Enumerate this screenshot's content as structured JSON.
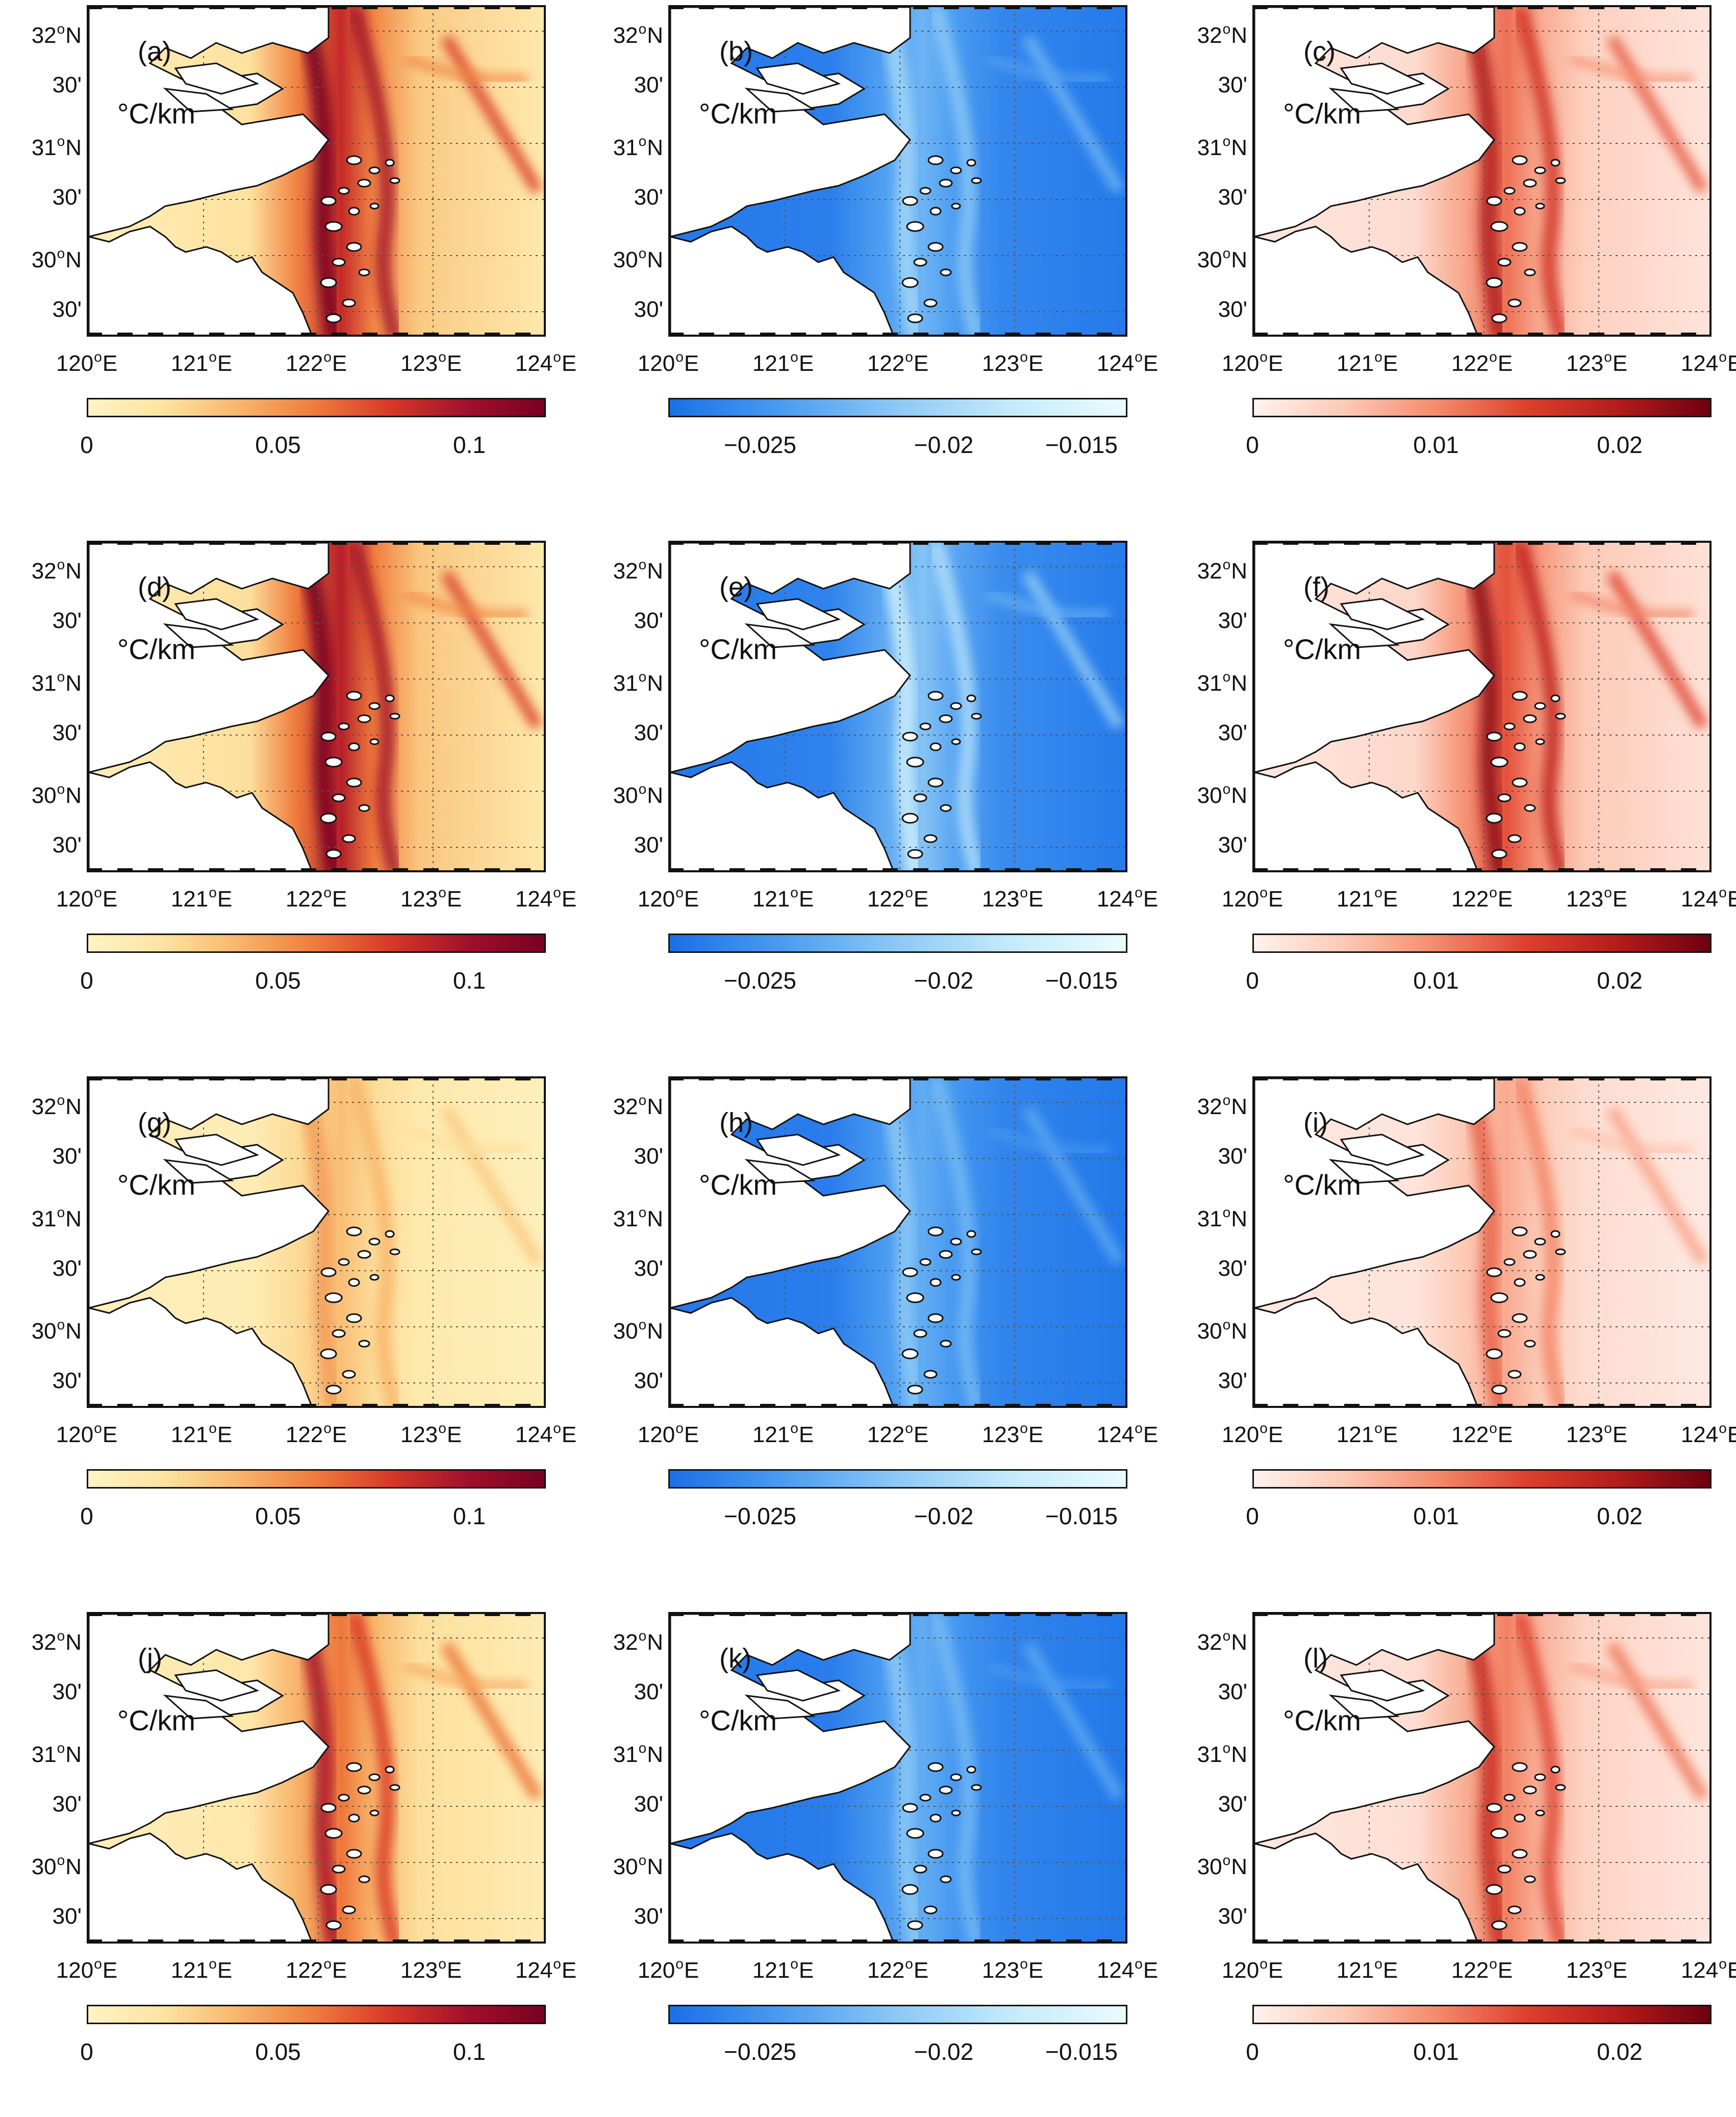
{
  "figure": {
    "unit_label": "°C/km",
    "lat_ticks": [
      {
        "deg": "32",
        "suffix": "N",
        "minute": false
      },
      {
        "deg": "30'",
        "suffix": "",
        "minute": true
      },
      {
        "deg": "31",
        "suffix": "N",
        "minute": false
      },
      {
        "deg": "30'",
        "suffix": "",
        "minute": true
      },
      {
        "deg": "30",
        "suffix": "N",
        "minute": false
      },
      {
        "deg": "30'",
        "suffix": "",
        "minute": true
      }
    ],
    "lon_ticks": [
      "120",
      "121",
      "122",
      "123",
      "124"
    ],
    "lon_suffix": "E",
    "lat_suffix": "N"
  },
  "colormaps": {
    "ylorrd": {
      "stops": [
        "#fff3c4",
        "#fde3a0",
        "#f8b46a",
        "#ef7a3c",
        "#d73727",
        "#a10f2b",
        "#7a0022"
      ],
      "ticks": [
        "0",
        "0.05",
        "0.1"
      ],
      "range": [
        0,
        0.12
      ],
      "tick_values": [
        0,
        0.05,
        0.1
      ]
    },
    "blues": {
      "stops": [
        "#1a6fe8",
        "#4b9cf1",
        "#8cc9f6",
        "#c4ebfb",
        "#eafbff"
      ],
      "ticks": [
        "−0.025",
        "−0.02",
        "−0.015"
      ],
      "range": [
        -0.0275,
        -0.015
      ],
      "tick_values": [
        -0.025,
        -0.02,
        -0.015
      ]
    },
    "reds": {
      "stops": [
        "#fff2ee",
        "#fcc9b5",
        "#f58a6b",
        "#dd3f2c",
        "#b41b1a",
        "#6e0010"
      ],
      "ticks": [
        "0",
        "0.01",
        "0.02"
      ],
      "range": [
        0,
        0.025
      ],
      "tick_values": [
        0,
        0.01,
        0.02
      ]
    }
  },
  "panels": [
    {
      "id": "a",
      "label": "(a)",
      "unit": "°C/km",
      "cmap": "ylorrd",
      "intensity": 0.85,
      "front": 1.0
    },
    {
      "id": "b",
      "label": "(b)",
      "unit": "°C/km",
      "cmap": "blues",
      "intensity": 0.45,
      "front": 0.6
    },
    {
      "id": "c",
      "label": "(c)",
      "unit": "°C/km",
      "cmap": "reds",
      "intensity": 0.55,
      "front": 0.8
    },
    {
      "id": "d",
      "label": "(d)",
      "unit": "°C/km",
      "cmap": "ylorrd",
      "intensity": 0.9,
      "front": 1.0
    },
    {
      "id": "e",
      "label": "(e)",
      "unit": "°C/km",
      "cmap": "blues",
      "intensity": 0.55,
      "front": 0.8
    },
    {
      "id": "f",
      "label": "(f)",
      "unit": "°C/km",
      "cmap": "reds",
      "intensity": 0.65,
      "front": 0.9
    },
    {
      "id": "g",
      "label": "(g)",
      "unit": "°C/km",
      "cmap": "ylorrd",
      "intensity": 0.35,
      "front": 0.4
    },
    {
      "id": "h",
      "label": "(h)",
      "unit": "°C/km",
      "cmap": "blues",
      "intensity": 0.4,
      "front": 0.5
    },
    {
      "id": "i",
      "label": "(i)",
      "unit": "°C/km",
      "cmap": "reds",
      "intensity": 0.35,
      "front": 0.5
    },
    {
      "id": "j",
      "label": "(j)",
      "unit": "°C/km",
      "cmap": "ylorrd",
      "intensity": 0.6,
      "front": 0.8
    },
    {
      "id": "k",
      "label": "(k)",
      "unit": "°C/km",
      "cmap": "blues",
      "intensity": 0.4,
      "front": 0.5
    },
    {
      "id": "l",
      "label": "(l)",
      "unit": "°C/km",
      "cmap": "reds",
      "intensity": 0.5,
      "front": 0.7
    }
  ]
}
